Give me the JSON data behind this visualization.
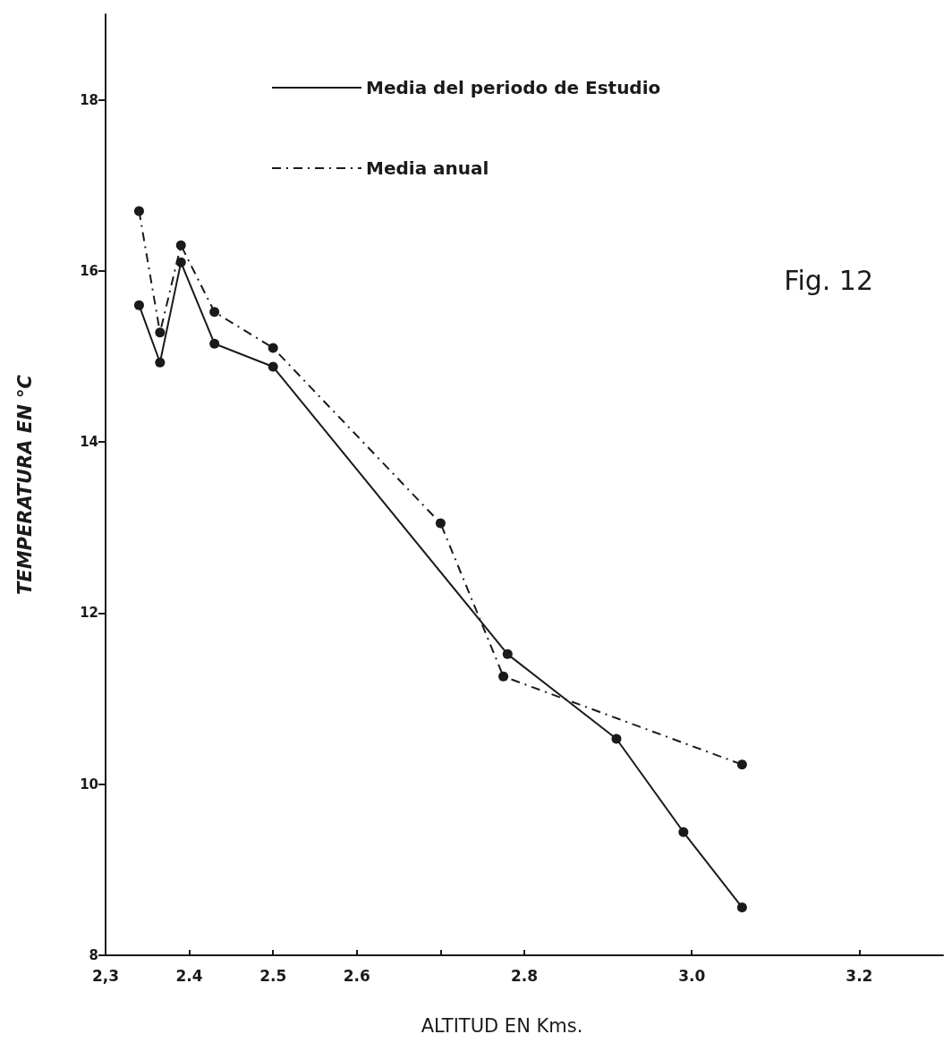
{
  "chart_data": {
    "type": "line",
    "xlabel": "ALTITUD EN Kms.",
    "ylabel": "TEMPERATURA EN °C",
    "annotations": [
      "Fig. 12"
    ],
    "xlim": [
      2.3,
      3.3
    ],
    "xticks": [
      {
        "value": 2.3,
        "label": "2,3"
      },
      2.4,
      2.5,
      2.6,
      {
        "value": 2.7,
        "label": null
      },
      2.8,
      {
        "value": 3.0,
        "label": "3.0"
      },
      3.2
    ],
    "ylim": [
      8,
      19
    ],
    "yticks": [
      8,
      10,
      12,
      14,
      16,
      18
    ],
    "grid": false,
    "legend": "top",
    "marker": "circle",
    "series": [
      {
        "name": "Media del periodo de Estudio",
        "color": "#1a1a1a",
        "line_style": "solid",
        "x": [
          2.34,
          2.365,
          2.39,
          2.43,
          2.5,
          2.78,
          2.91,
          2.99,
          3.06
        ],
        "values": [
          15.6,
          14.93,
          16.1,
          15.15,
          14.88,
          11.52,
          10.53,
          9.44,
          8.56
        ]
      },
      {
        "name": "Media anual",
        "color": "#1a1a1a",
        "line_style": "dashed",
        "x": [
          2.34,
          2.365,
          2.39,
          2.43,
          2.5,
          2.7,
          2.775,
          3.06
        ],
        "values": [
          16.7,
          15.28,
          16.3,
          15.52,
          15.1,
          13.05,
          11.26,
          10.23
        ]
      }
    ]
  }
}
